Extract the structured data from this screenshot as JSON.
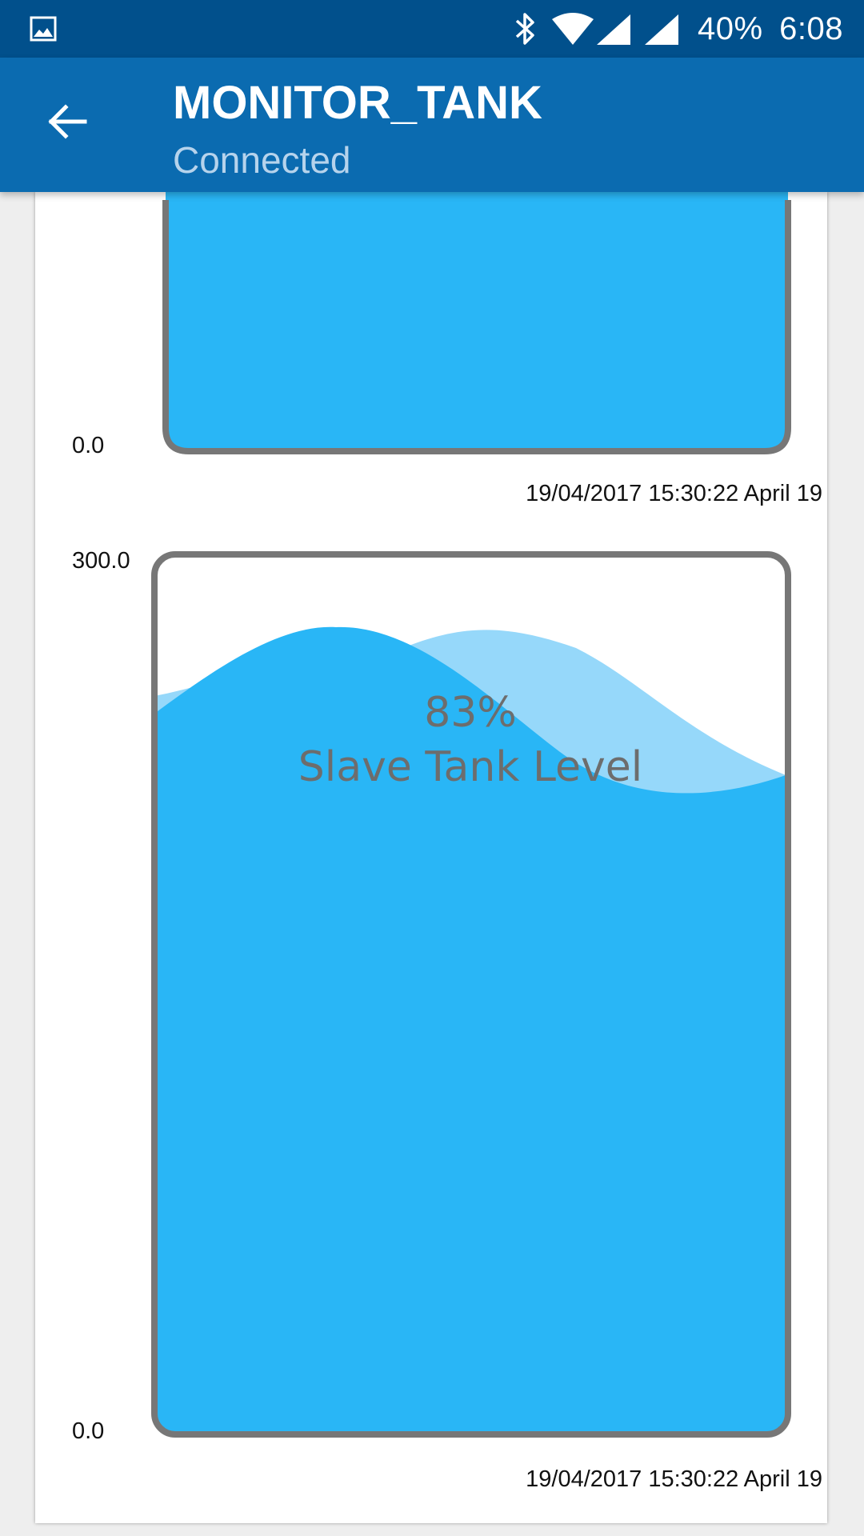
{
  "status_bar": {
    "battery": "40%",
    "time": "6:08",
    "icons": [
      "gallery-icon",
      "bluetooth-icon",
      "wifi-icon",
      "signal-icon",
      "signal-icon"
    ]
  },
  "app_bar": {
    "title": "MONITOR_TANK",
    "subtitle": "Connected",
    "back_icon": "arrow-left-icon"
  },
  "tanks": [
    {
      "axis_max": "",
      "axis_min": "0.0",
      "percent": "",
      "label": "",
      "timestamp": "19/04/2017 15:30:22 April 19",
      "fill_fraction": 1.0
    },
    {
      "axis_max": "300.0",
      "axis_min": "0.0",
      "percent": "83%",
      "label": "Slave Tank Level",
      "timestamp": "19/04/2017 15:30:22 April 19",
      "fill_fraction": 0.83
    }
  ],
  "colors": {
    "status_bar": "#01508c",
    "app_bar": "#0b6bb0",
    "water": "#29b6f6",
    "water_light": "#96d8fa",
    "tank_border": "#777777"
  }
}
